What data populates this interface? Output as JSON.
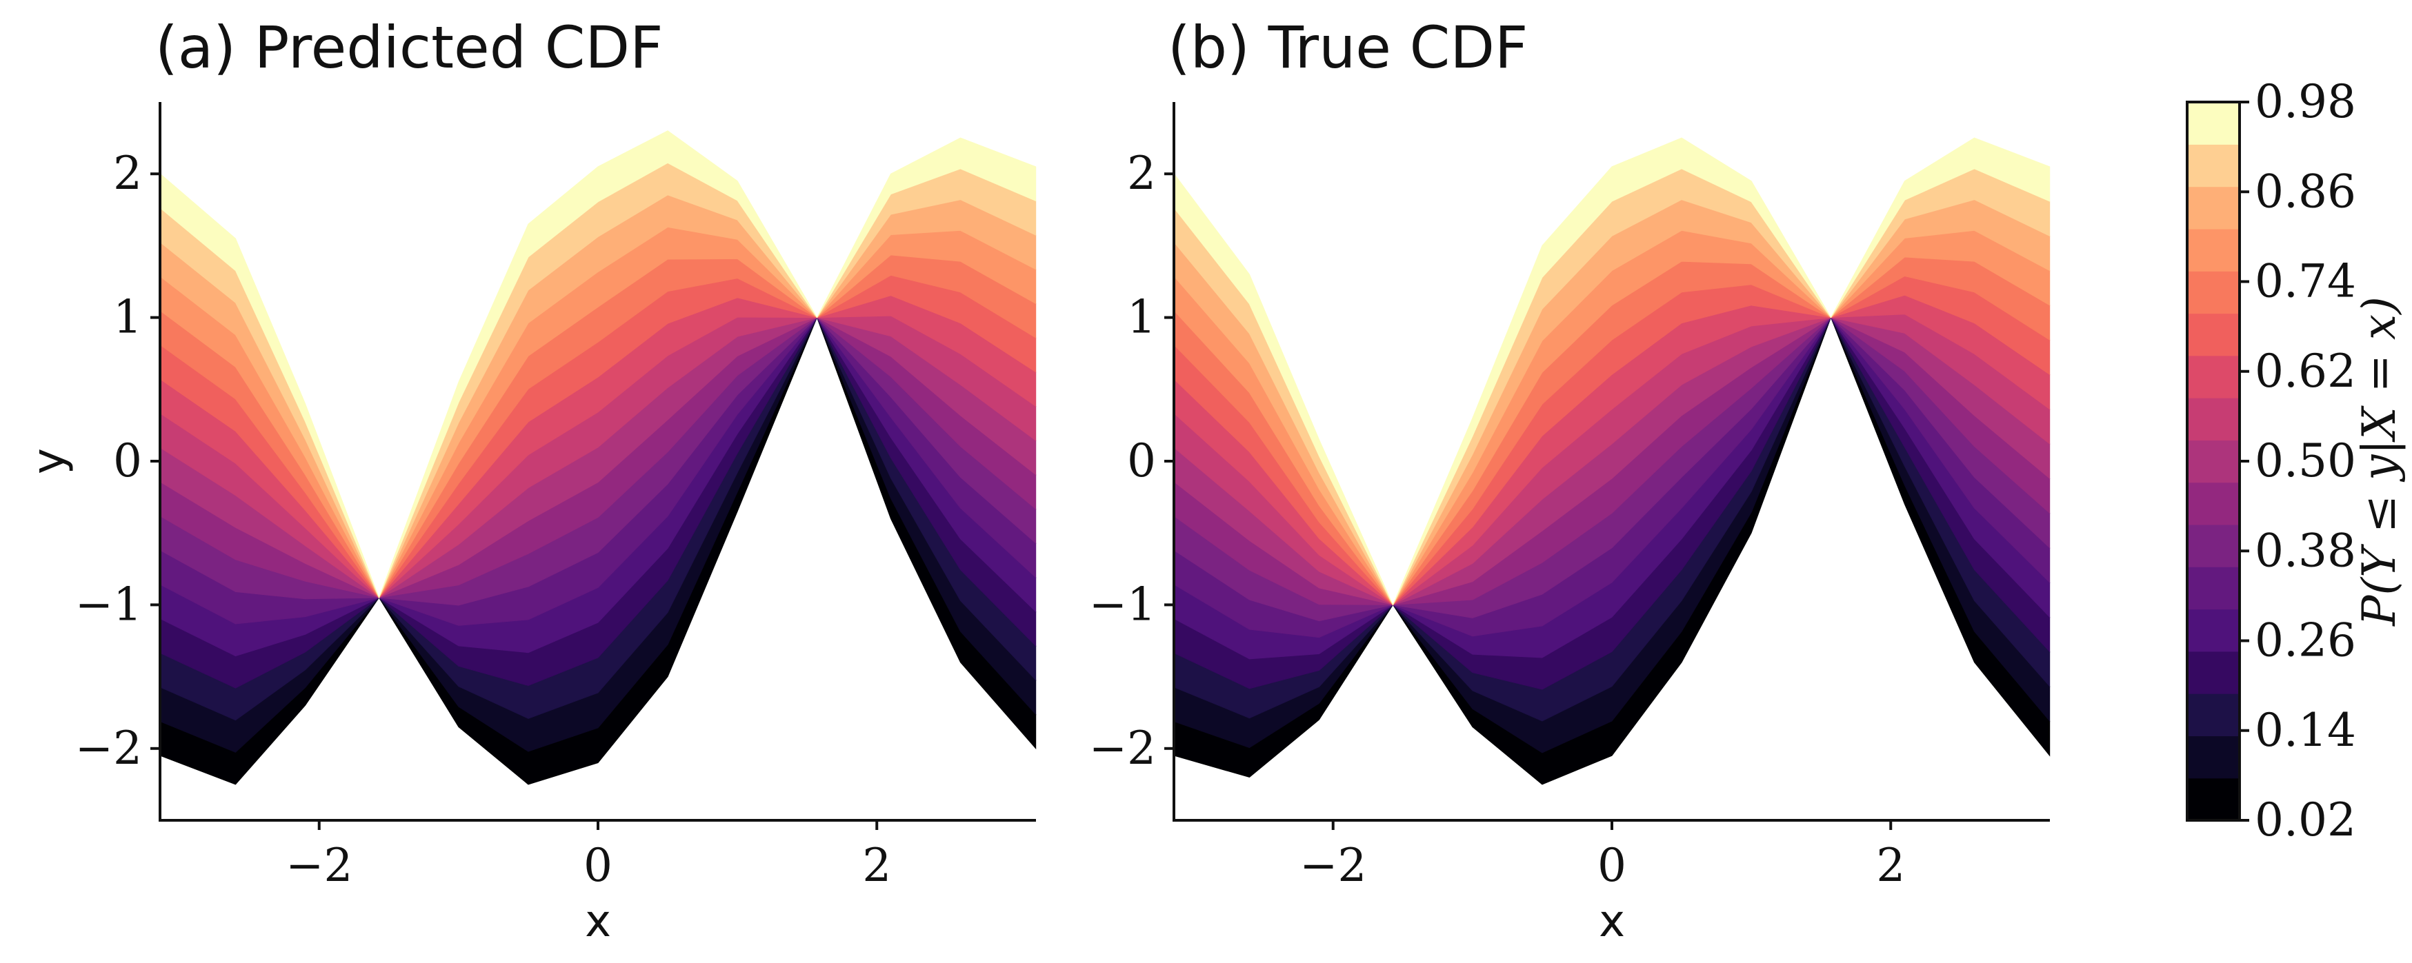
{
  "chart_data": [
    {
      "type": "filled-contour",
      "title": "(a) Predicted CDF",
      "xlabel": "x",
      "ylabel": "y",
      "xlim": [
        -3.14159,
        3.14159
      ],
      "ylim": [
        -2.5,
        2.5
      ],
      "xticks": [
        -2,
        0,
        2
      ],
      "xtick_labels": [
        "−2",
        "0",
        "2"
      ],
      "yticks": [
        -2,
        -1,
        0,
        1,
        2
      ],
      "ytick_labels": [
        "−2",
        "−1",
        "0",
        "1",
        "2"
      ],
      "grid": false,
      "series": [
        {
          "x": [
            -3.14,
            -2.6,
            -2.1,
            -1.571,
            -1.0,
            -0.5,
            0.0,
            0.5,
            1.0,
            1.571,
            2.1,
            2.6,
            3.14
          ],
          "lower": [
            -2.05,
            -2.25,
            -1.7,
            -0.95,
            -1.85,
            -2.25,
            -2.1,
            -1.5,
            -0.35,
            1.0,
            -0.4,
            -1.4,
            -2.0
          ],
          "upper": [
            2.0,
            1.55,
            0.4,
            -0.95,
            0.55,
            1.65,
            2.05,
            2.3,
            1.95,
            1.0,
            2.0,
            2.25,
            2.05
          ]
        }
      ]
    },
    {
      "type": "filled-contour",
      "title": "(b) True CDF",
      "xlabel": "x",
      "ylabel": "",
      "xlim": [
        -3.14159,
        3.14159
      ],
      "ylim": [
        -2.5,
        2.5
      ],
      "xticks": [
        -2,
        0,
        2
      ],
      "xtick_labels": [
        "−2",
        "0",
        "2"
      ],
      "yticks": [
        -2,
        -1,
        0,
        1,
        2
      ],
      "ytick_labels": [
        "−2",
        "−1",
        "0",
        "1",
        "2"
      ],
      "grid": false,
      "series": [
        {
          "x": [
            -3.14,
            -2.6,
            -2.1,
            -1.571,
            -1.0,
            -0.5,
            0.0,
            0.5,
            1.0,
            1.571,
            2.1,
            2.6,
            3.14
          ],
          "lower": [
            -2.05,
            -2.2,
            -1.8,
            -1.0,
            -1.85,
            -2.25,
            -2.05,
            -1.4,
            -0.5,
            1.0,
            -0.3,
            -1.4,
            -2.05
          ],
          "upper": [
            2.0,
            1.3,
            0.15,
            -1.0,
            0.3,
            1.5,
            2.05,
            2.25,
            1.95,
            1.0,
            1.95,
            2.25,
            2.05
          ]
        }
      ]
    }
  ],
  "colorbar": {
    "label": "P(Y ≤ y|X = x)",
    "tick_values": [
      0.02,
      0.14,
      0.26,
      0.38,
      0.5,
      0.62,
      0.74,
      0.86,
      0.98
    ],
    "tick_labels": [
      "0.02",
      "0.14",
      "0.26",
      "0.38",
      "0.50",
      "0.62",
      "0.74",
      "0.86",
      "0.98"
    ],
    "levels": [
      0.02,
      0.08,
      0.14,
      0.2,
      0.26,
      0.32,
      0.38,
      0.44,
      0.5,
      0.56,
      0.62,
      0.68,
      0.74,
      0.8,
      0.86,
      0.92,
      0.98
    ],
    "colors": [
      "#000004",
      "#0c0826",
      "#1d1147",
      "#360961",
      "#4f127b",
      "#63197f",
      "#7b2382",
      "#93287f",
      "#ad347c",
      "#c73d73",
      "#dd4a69",
      "#f0605d",
      "#f8795d",
      "#fd9567",
      "#feaf77",
      "#fecf92",
      "#fcfdbf"
    ],
    "colormap": "magma"
  }
}
